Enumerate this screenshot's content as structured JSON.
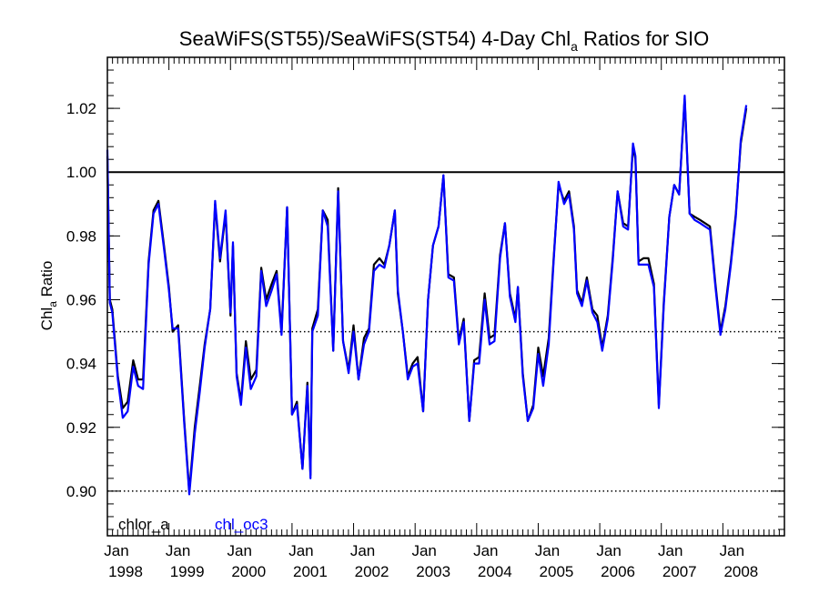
{
  "chart_data": {
    "type": "line",
    "title": {
      "prefix": "SeaWiFS(ST55)/SeaWiFS(ST54) 4-Day Chl",
      "sub": "a",
      "suffix": " Ratios for SIO"
    },
    "ylabel": {
      "prefix": "Chl",
      "sub": "a",
      "suffix": " Ratio"
    },
    "xlim": [
      1998.0,
      2009.0
    ],
    "ylim": [
      0.886,
      1.036
    ],
    "yticks": [
      "0.90",
      "0.92",
      "0.94",
      "0.96",
      "0.98",
      "1.00",
      "1.02"
    ],
    "yminor_step": 0.004,
    "xticks": [
      {
        "month": "Jan",
        "year": "1998"
      },
      {
        "month": "Jan",
        "year": "1999"
      },
      {
        "month": "Jan",
        "year": "2000"
      },
      {
        "month": "Jan",
        "year": "2001"
      },
      {
        "month": "Jan",
        "year": "2002"
      },
      {
        "month": "Jan",
        "year": "2003"
      },
      {
        "month": "Jan",
        "year": "2004"
      },
      {
        "month": "Jan",
        "year": "2005"
      },
      {
        "month": "Jan",
        "year": "2006"
      },
      {
        "month": "Jan",
        "year": "2007"
      },
      {
        "month": "Jan",
        "year": "2008"
      }
    ],
    "reference_lines": [
      {
        "y": 1.0,
        "style": "solid"
      },
      {
        "y": 0.95,
        "style": "dotted"
      },
      {
        "y": 0.9,
        "style": "dotted"
      }
    ],
    "legend_position": "bottom-left",
    "series": [
      {
        "name": "chlor_a",
        "color": "#000000",
        "points": [
          [
            1998.0,
            1.005
          ],
          [
            1998.04,
            0.96
          ],
          [
            1998.08,
            0.957
          ],
          [
            1998.17,
            0.936
          ],
          [
            1998.25,
            0.926
          ],
          [
            1998.33,
            0.928
          ],
          [
            1998.42,
            0.941
          ],
          [
            1998.5,
            0.935
          ],
          [
            1998.58,
            0.935
          ],
          [
            1998.67,
            0.972
          ],
          [
            1998.75,
            0.988
          ],
          [
            1998.83,
            0.991
          ],
          [
            1998.92,
            0.977
          ],
          [
            1999.0,
            0.964
          ],
          [
            1999.06,
            0.95
          ],
          [
            1999.15,
            0.952
          ],
          [
            1999.25,
            0.922
          ],
          [
            1999.33,
            0.9
          ],
          [
            1999.42,
            0.92
          ],
          [
            1999.5,
            0.933
          ],
          [
            1999.58,
            0.946
          ],
          [
            1999.67,
            0.957
          ],
          [
            1999.75,
            0.99
          ],
          [
            1999.83,
            0.972
          ],
          [
            1999.92,
            0.987
          ],
          [
            2000.0,
            0.955
          ],
          [
            2000.04,
            0.977
          ],
          [
            2000.1,
            0.937
          ],
          [
            2000.17,
            0.928
          ],
          [
            2000.25,
            0.947
          ],
          [
            2000.33,
            0.935
          ],
          [
            2000.42,
            0.938
          ],
          [
            2000.5,
            0.97
          ],
          [
            2000.58,
            0.96
          ],
          [
            2000.67,
            0.965
          ],
          [
            2000.75,
            0.969
          ],
          [
            2000.83,
            0.95
          ],
          [
            2000.92,
            0.989
          ],
          [
            2001.0,
            0.924
          ],
          [
            2001.08,
            0.928
          ],
          [
            2001.17,
            0.907
          ],
          [
            2001.25,
            0.934
          ],
          [
            2001.3,
            0.905
          ],
          [
            2001.33,
            0.951
          ],
          [
            2001.42,
            0.957
          ],
          [
            2001.5,
            0.988
          ],
          [
            2001.58,
            0.985
          ],
          [
            2001.67,
            0.944
          ],
          [
            2001.75,
            0.995
          ],
          [
            2001.83,
            0.947
          ],
          [
            2001.92,
            0.938
          ],
          [
            2002.0,
            0.952
          ],
          [
            2002.08,
            0.935
          ],
          [
            2002.17,
            0.948
          ],
          [
            2002.25,
            0.951
          ],
          [
            2002.33,
            0.971
          ],
          [
            2002.42,
            0.973
          ],
          [
            2002.5,
            0.971
          ],
          [
            2002.58,
            0.977
          ],
          [
            2002.67,
            0.988
          ],
          [
            2002.72,
            0.962
          ],
          [
            2002.8,
            0.95
          ],
          [
            2002.88,
            0.936
          ],
          [
            2002.96,
            0.94
          ],
          [
            2003.04,
            0.942
          ],
          [
            2003.13,
            0.925
          ],
          [
            2003.21,
            0.96
          ],
          [
            2003.29,
            0.977
          ],
          [
            2003.38,
            0.983
          ],
          [
            2003.46,
            0.999
          ],
          [
            2003.54,
            0.968
          ],
          [
            2003.63,
            0.967
          ],
          [
            2003.71,
            0.947
          ],
          [
            2003.79,
            0.954
          ],
          [
            2003.88,
            0.922
          ],
          [
            2003.96,
            0.941
          ],
          [
            2004.04,
            0.942
          ],
          [
            2004.13,
            0.962
          ],
          [
            2004.21,
            0.948
          ],
          [
            2004.29,
            0.949
          ],
          [
            2004.38,
            0.974
          ],
          [
            2004.46,
            0.984
          ],
          [
            2004.54,
            0.962
          ],
          [
            2004.63,
            0.954
          ],
          [
            2004.67,
            0.964
          ],
          [
            2004.75,
            0.937
          ],
          [
            2004.83,
            0.922
          ],
          [
            2004.92,
            0.927
          ],
          [
            2005.0,
            0.945
          ],
          [
            2005.08,
            0.936
          ],
          [
            2005.17,
            0.948
          ],
          [
            2005.25,
            0.973
          ],
          [
            2005.33,
            0.996
          ],
          [
            2005.42,
            0.991
          ],
          [
            2005.5,
            0.994
          ],
          [
            2005.58,
            0.983
          ],
          [
            2005.63,
            0.963
          ],
          [
            2005.71,
            0.959
          ],
          [
            2005.79,
            0.967
          ],
          [
            2005.88,
            0.957
          ],
          [
            2005.96,
            0.955
          ],
          [
            2006.04,
            0.945
          ],
          [
            2006.13,
            0.955
          ],
          [
            2006.21,
            0.973
          ],
          [
            2006.29,
            0.994
          ],
          [
            2006.38,
            0.984
          ],
          [
            2006.46,
            0.983
          ],
          [
            2006.54,
            1.008
          ],
          [
            2006.58,
            1.004
          ],
          [
            2006.63,
            0.972
          ],
          [
            2006.71,
            0.973
          ],
          [
            2006.79,
            0.973
          ],
          [
            2006.88,
            0.965
          ],
          [
            2006.96,
            0.927
          ],
          [
            2007.04,
            0.959
          ],
          [
            2007.13,
            0.986
          ],
          [
            2007.21,
            0.996
          ],
          [
            2007.29,
            0.993
          ],
          [
            2007.38,
            1.023
          ],
          [
            2007.46,
            0.987
          ],
          [
            2007.54,
            0.986
          ],
          [
            2007.63,
            0.985
          ],
          [
            2007.71,
            0.984
          ],
          [
            2007.79,
            0.983
          ],
          [
            2007.88,
            0.965
          ],
          [
            2007.96,
            0.95
          ],
          [
            2008.04,
            0.958
          ],
          [
            2008.13,
            0.972
          ],
          [
            2008.21,
            0.987
          ],
          [
            2008.29,
            1.009
          ],
          [
            2008.38,
            1.02
          ]
        ]
      },
      {
        "name": "chl_oc3",
        "color": "#0000ff",
        "points": [
          [
            1998.0,
            1.007
          ],
          [
            1998.04,
            0.959
          ],
          [
            1998.08,
            0.956
          ],
          [
            1998.17,
            0.935
          ],
          [
            1998.25,
            0.923
          ],
          [
            1998.33,
            0.925
          ],
          [
            1998.42,
            0.939
          ],
          [
            1998.5,
            0.933
          ],
          [
            1998.58,
            0.932
          ],
          [
            1998.67,
            0.971
          ],
          [
            1998.75,
            0.987
          ],
          [
            1998.83,
            0.99
          ],
          [
            1998.92,
            0.976
          ],
          [
            1999.0,
            0.963
          ],
          [
            1999.06,
            0.951
          ],
          [
            1999.15,
            0.951
          ],
          [
            1999.25,
            0.921
          ],
          [
            1999.33,
            0.899
          ],
          [
            1999.42,
            0.918
          ],
          [
            1999.5,
            0.931
          ],
          [
            1999.58,
            0.945
          ],
          [
            1999.67,
            0.957
          ],
          [
            1999.75,
            0.991
          ],
          [
            1999.83,
            0.973
          ],
          [
            1999.92,
            0.988
          ],
          [
            2000.0,
            0.956
          ],
          [
            2000.04,
            0.978
          ],
          [
            2000.1,
            0.936
          ],
          [
            2000.17,
            0.927
          ],
          [
            2000.25,
            0.945
          ],
          [
            2000.33,
            0.932
          ],
          [
            2000.42,
            0.936
          ],
          [
            2000.5,
            0.969
          ],
          [
            2000.58,
            0.958
          ],
          [
            2000.67,
            0.963
          ],
          [
            2000.75,
            0.968
          ],
          [
            2000.83,
            0.949
          ],
          [
            2000.92,
            0.989
          ],
          [
            2001.0,
            0.924
          ],
          [
            2001.08,
            0.927
          ],
          [
            2001.17,
            0.907
          ],
          [
            2001.25,
            0.933
          ],
          [
            2001.3,
            0.904
          ],
          [
            2001.33,
            0.95
          ],
          [
            2001.42,
            0.955
          ],
          [
            2001.5,
            0.988
          ],
          [
            2001.58,
            0.983
          ],
          [
            2001.67,
            0.944
          ],
          [
            2001.75,
            0.994
          ],
          [
            2001.83,
            0.947
          ],
          [
            2001.92,
            0.937
          ],
          [
            2002.0,
            0.95
          ],
          [
            2002.08,
            0.935
          ],
          [
            2002.17,
            0.946
          ],
          [
            2002.25,
            0.95
          ],
          [
            2002.33,
            0.969
          ],
          [
            2002.42,
            0.971
          ],
          [
            2002.5,
            0.97
          ],
          [
            2002.58,
            0.977
          ],
          [
            2002.67,
            0.988
          ],
          [
            2002.72,
            0.963
          ],
          [
            2002.8,
            0.95
          ],
          [
            2002.88,
            0.935
          ],
          [
            2002.96,
            0.939
          ],
          [
            2003.04,
            0.94
          ],
          [
            2003.13,
            0.925
          ],
          [
            2003.21,
            0.96
          ],
          [
            2003.29,
            0.977
          ],
          [
            2003.38,
            0.983
          ],
          [
            2003.46,
            0.999
          ],
          [
            2003.54,
            0.967
          ],
          [
            2003.63,
            0.966
          ],
          [
            2003.71,
            0.946
          ],
          [
            2003.79,
            0.953
          ],
          [
            2003.88,
            0.922
          ],
          [
            2003.96,
            0.94
          ],
          [
            2004.04,
            0.94
          ],
          [
            2004.13,
            0.96
          ],
          [
            2004.21,
            0.946
          ],
          [
            2004.29,
            0.947
          ],
          [
            2004.38,
            0.973
          ],
          [
            2004.46,
            0.984
          ],
          [
            2004.54,
            0.961
          ],
          [
            2004.63,
            0.953
          ],
          [
            2004.67,
            0.964
          ],
          [
            2004.75,
            0.936
          ],
          [
            2004.83,
            0.922
          ],
          [
            2004.92,
            0.926
          ],
          [
            2005.0,
            0.943
          ],
          [
            2005.08,
            0.933
          ],
          [
            2005.17,
            0.946
          ],
          [
            2005.25,
            0.972
          ],
          [
            2005.33,
            0.997
          ],
          [
            2005.42,
            0.99
          ],
          [
            2005.5,
            0.993
          ],
          [
            2005.58,
            0.982
          ],
          [
            2005.63,
            0.962
          ],
          [
            2005.71,
            0.958
          ],
          [
            2005.79,
            0.966
          ],
          [
            2005.88,
            0.956
          ],
          [
            2005.96,
            0.953
          ],
          [
            2006.04,
            0.944
          ],
          [
            2006.13,
            0.954
          ],
          [
            2006.21,
            0.972
          ],
          [
            2006.29,
            0.994
          ],
          [
            2006.38,
            0.983
          ],
          [
            2006.46,
            0.982
          ],
          [
            2006.54,
            1.009
          ],
          [
            2006.58,
            1.005
          ],
          [
            2006.63,
            0.971
          ],
          [
            2006.71,
            0.971
          ],
          [
            2006.79,
            0.971
          ],
          [
            2006.88,
            0.964
          ],
          [
            2006.96,
            0.926
          ],
          [
            2007.04,
            0.958
          ],
          [
            2007.13,
            0.986
          ],
          [
            2007.21,
            0.996
          ],
          [
            2007.29,
            0.993
          ],
          [
            2007.38,
            1.024
          ],
          [
            2007.46,
            0.987
          ],
          [
            2007.54,
            0.985
          ],
          [
            2007.63,
            0.984
          ],
          [
            2007.71,
            0.983
          ],
          [
            2007.79,
            0.982
          ],
          [
            2007.88,
            0.964
          ],
          [
            2007.96,
            0.949
          ],
          [
            2008.04,
            0.957
          ],
          [
            2008.13,
            0.971
          ],
          [
            2008.21,
            0.986
          ],
          [
            2008.29,
            1.01
          ],
          [
            2008.38,
            1.021
          ]
        ]
      }
    ]
  }
}
